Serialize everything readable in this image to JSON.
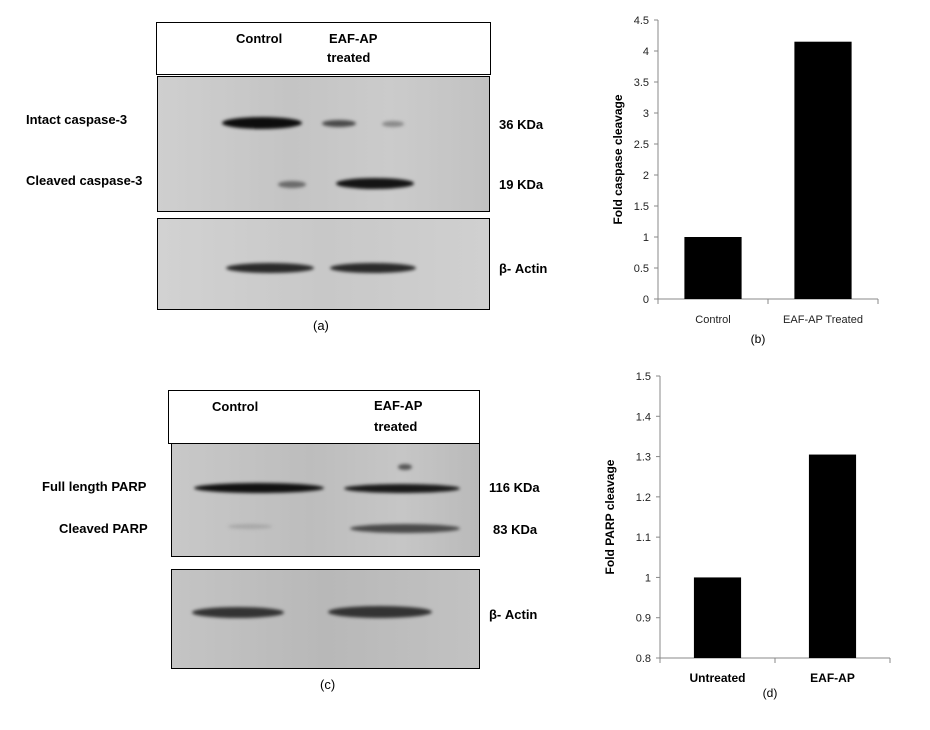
{
  "panel_a": {
    "header_control": "Control",
    "header_treated_1": "EAF-AP",
    "header_treated_2": "treated",
    "row_intact": "Intact caspase-3",
    "row_cleaved": "Cleaved caspase-3",
    "size_intact": "36  KDa",
    "size_cleaved": "19 KDa",
    "size_actin": "β- Actin",
    "caption": "(a)"
  },
  "panel_c": {
    "header_control": "Control",
    "header_treated_1": "EAF-AP",
    "header_treated_2": "treated",
    "row_full": "Full length PARP",
    "row_cleaved": "Cleaved PARP",
    "size_full": "116  KDa",
    "size_cleaved": "83 KDa",
    "size_actin": "β- Actin",
    "caption": "(c)"
  },
  "chart_data": [
    {
      "type": "bar",
      "panel": "(b)",
      "categories": [
        "Control",
        "EAF-AP Treated"
      ],
      "values": [
        1.0,
        4.15
      ],
      "xlabel": "",
      "ylabel": "Fold caspase cleavage",
      "ylim": [
        0,
        4.5
      ],
      "yticks": [
        "0",
        "0.5",
        "1",
        "1.5",
        "2",
        "2.5",
        "3",
        "3.5",
        "4",
        "4.5"
      ],
      "bar_color": "#000000",
      "grid": false
    },
    {
      "type": "bar",
      "panel": "(d)",
      "categories": [
        "Untreated",
        "EAF-AP"
      ],
      "values": [
        1.0,
        1.305
      ],
      "xlabel": "",
      "ylabel": "Fold  PARP cleavage",
      "ylim": [
        0.8,
        1.5
      ],
      "yticks": [
        "0.8",
        "0.9",
        "1",
        "1.1",
        "1.2",
        "1.3",
        "1.4",
        "1.5"
      ],
      "bar_color": "#000000",
      "grid": false
    }
  ]
}
